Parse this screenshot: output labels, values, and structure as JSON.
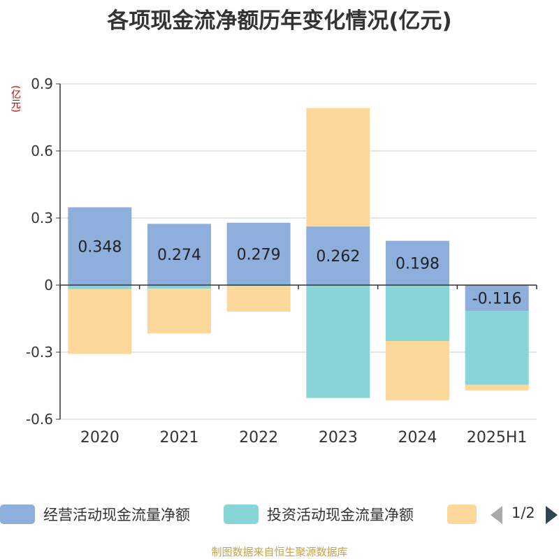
{
  "title": "各项现金流净额历年变化情况(亿元)",
  "unit_label": "(亿元)",
  "footer": "制图数据来自恒生聚源数据库",
  "legend": {
    "items": [
      {
        "label": "经营活动现金流量净额",
        "color": "#8eaedc"
      },
      {
        "label": "投资活动现金流量净额",
        "color": "#88d5d8"
      },
      {
        "label": "",
        "color": "#fdd89a"
      }
    ],
    "page": "1/2"
  },
  "chart_data": {
    "type": "bar",
    "stacked": true,
    "categories": [
      "2020",
      "2021",
      "2022",
      "2023",
      "2024",
      "2025H1"
    ],
    "series": [
      {
        "name": "经营活动现金流量净额",
        "color": "#8eaedc",
        "values": [
          0.348,
          0.274,
          0.279,
          0.262,
          0.198,
          -0.116
        ],
        "data_labels": true
      },
      {
        "name": "投资活动现金流量净额",
        "color": "#88d5d8",
        "values": [
          -0.018,
          -0.016,
          -0.004,
          -0.505,
          -0.25,
          -0.33
        ],
        "data_labels": false
      },
      {
        "color": "#fdd89a",
        "values": [
          -0.29,
          -0.2,
          -0.115,
          0.53,
          -0.265,
          -0.025
        ],
        "data_labels": false
      }
    ],
    "yticks": [
      "0.9",
      "0.6",
      "0.3",
      "0",
      "-0.3",
      "-0.6"
    ],
    "ylim": [
      -0.6,
      0.9
    ],
    "grid": true,
    "legend_position": "bottom"
  }
}
